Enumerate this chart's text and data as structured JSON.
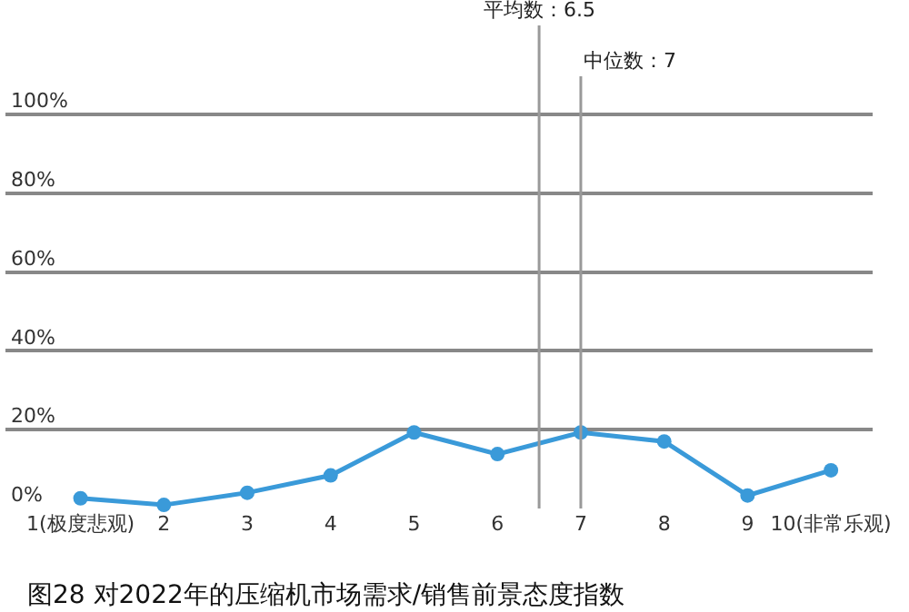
{
  "chart_data": {
    "type": "line",
    "title": "图28 对2022年的压缩机市场需求/销售前景态度指数",
    "x": [
      1,
      2,
      3,
      4,
      5,
      6,
      7,
      8,
      9,
      10
    ],
    "series": [
      {
        "color": "#3a9ad9",
        "values": [
          2.6,
          0.9,
          4,
          8.4,
          19.3,
          13.8,
          19.3,
          17,
          3.3,
          9.7
        ]
      }
    ],
    "xlim": [
      0.1,
      10.5
    ],
    "xticks": [
      {
        "value": 1,
        "label": "1(极度悲观)"
      },
      2,
      3,
      4,
      5,
      6,
      7,
      8,
      9,
      {
        "value": 10,
        "label": "10(非常乐观)"
      }
    ],
    "ylim": [
      0,
      129
    ],
    "yticks": [
      {
        "value": 0,
        "label": "0%"
      },
      {
        "value": 20,
        "label": "20%"
      },
      {
        "value": 40,
        "label": "40%"
      },
      {
        "value": 60,
        "label": "60%"
      },
      {
        "value": 80,
        "label": "80%"
      },
      {
        "value": 100,
        "label": "100%"
      }
    ],
    "ref_lines": [
      {
        "axis": "x",
        "value": 6.5,
        "label": "平均数：6.5",
        "color": "#999999"
      },
      {
        "axis": "x",
        "value": 7,
        "label": "中位数：7",
        "color": "#999999"
      }
    ],
    "grid": "y",
    "marker": "circle",
    "line_style": "solid",
    "legend": false
  }
}
